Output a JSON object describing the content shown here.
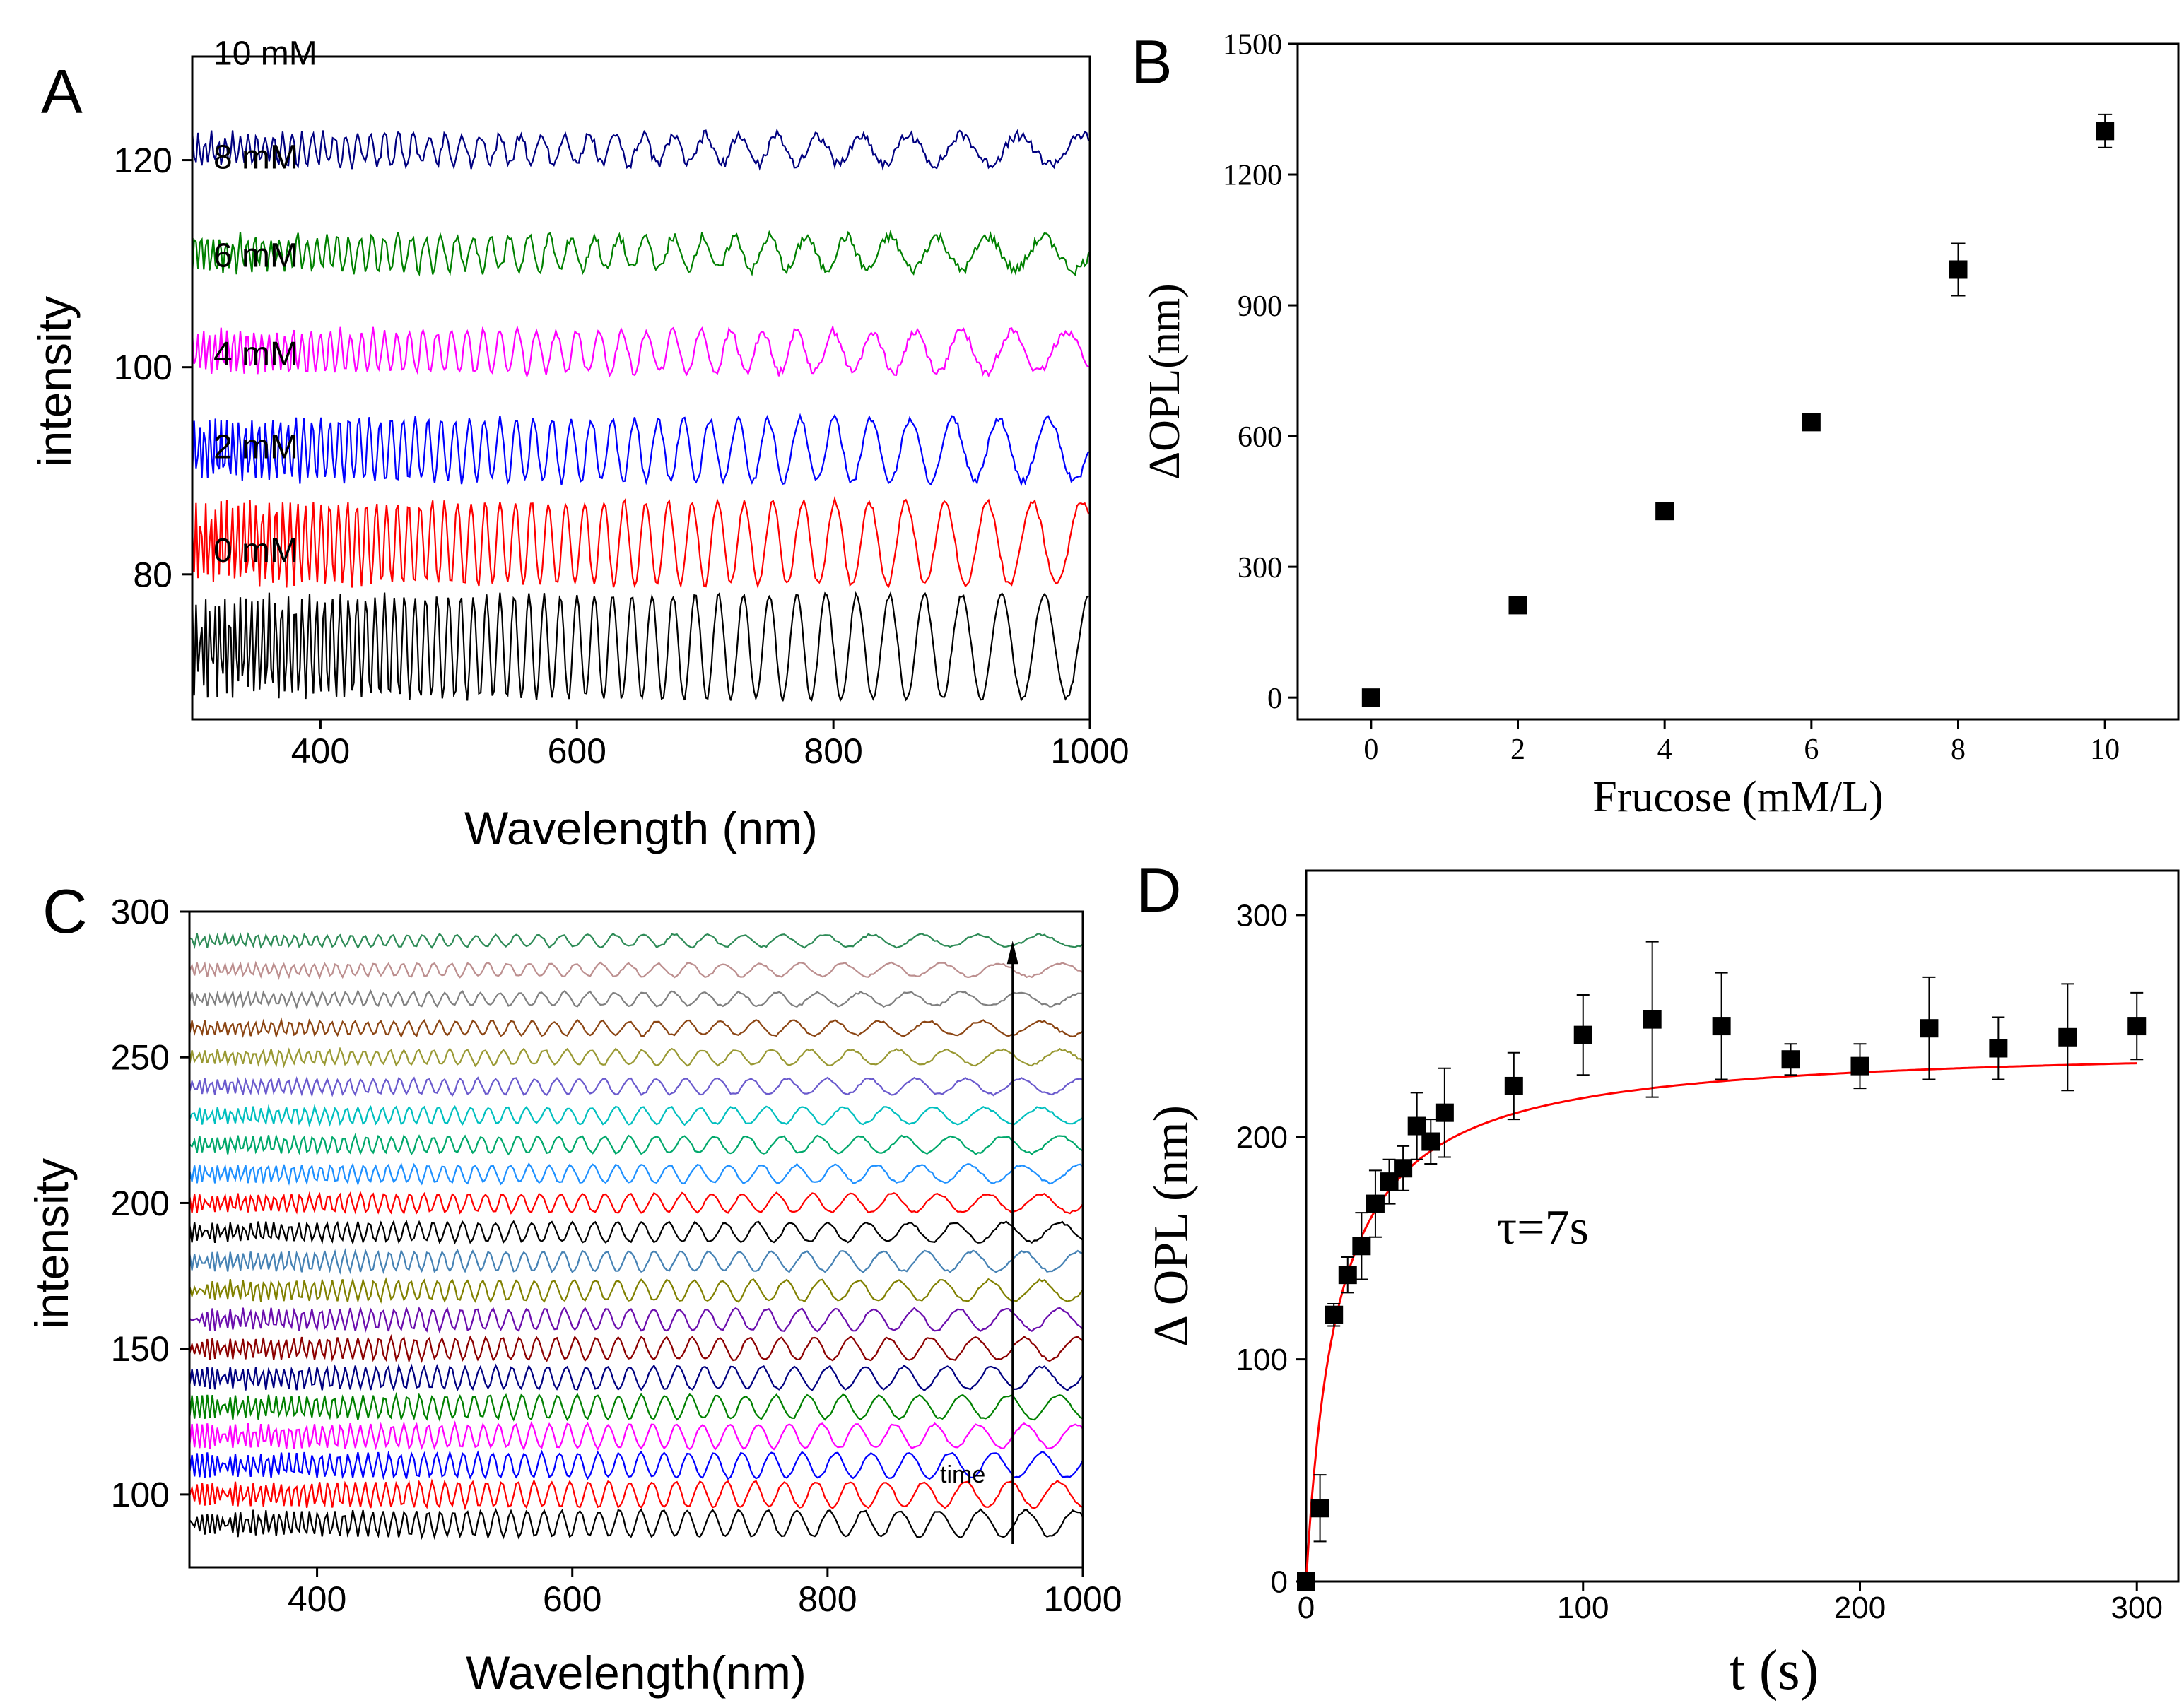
{
  "panels": {
    "A": {
      "letter": "A",
      "chart_data": {
        "type": "line",
        "xlabel": "Wavelength (nm)",
        "ylabel": "intensity",
        "xlim": [
          300,
          1000
        ],
        "ylim": [
          66,
          130
        ],
        "xticks": [
          400,
          600,
          800,
          1000
        ],
        "yticks": [
          80,
          100,
          120
        ],
        "series": [
          {
            "name": "0 mM",
            "color": "#000000",
            "offset": 73,
            "amp": 5,
            "periodScale": 1.0,
            "noise": 0.25
          },
          {
            "name": "2 mM",
            "color": "#ff0000",
            "offset": 83,
            "amp": 4,
            "periodScale": 0.92,
            "noise": 0.3
          },
          {
            "name": "4 mM",
            "color": "#0000ff",
            "offset": 92,
            "amp": 3,
            "periodScale": 0.86,
            "noise": 0.35
          },
          {
            "name": "6 mM",
            "color": "#ff00ff",
            "offset": 101.5,
            "amp": 2,
            "periodScale": 0.8,
            "noise": 0.4
          },
          {
            "name": "8 mM",
            "color": "#008000",
            "offset": 111,
            "amp": 1.6,
            "periodScale": 0.75,
            "noise": 0.5
          },
          {
            "name": "10 mM",
            "color": "#000080",
            "offset": 121,
            "amp": 1.4,
            "periodScale": 0.7,
            "noise": 0.5
          }
        ]
      }
    },
    "B": {
      "letter": "B",
      "chart_data": {
        "type": "scatter",
        "xlabel": "Frucose (mM/L)",
        "ylabel": "ΔOPL(nm)",
        "xlim": [
          -1,
          11
        ],
        "ylim": [
          -50,
          1500
        ],
        "xticks": [
          0,
          2,
          4,
          6,
          8,
          10
        ],
        "yticks": [
          0,
          300,
          600,
          900,
          1200,
          1500
        ],
        "x": [
          0,
          2,
          4,
          6,
          8,
          10
        ],
        "y": [
          0,
          212,
          428,
          632,
          982,
          1300
        ],
        "yerr": [
          5,
          10,
          18,
          10,
          60,
          38
        ]
      }
    },
    "C": {
      "letter": "C",
      "chart_data": {
        "type": "line",
        "xlabel": "Wavelength(nm)",
        "ylabel": "intensity",
        "xlim": [
          300,
          1000
        ],
        "ylim": [
          75,
          300
        ],
        "xticks": [
          400,
          600,
          800,
          1000
        ],
        "yticks": [
          100,
          150,
          200,
          250,
          300
        ],
        "annotation": "time",
        "series_colors": [
          "#000000",
          "#ff0000",
          "#0000ff",
          "#ff00ff",
          "#008000",
          "#000080",
          "#8b0000",
          "#6a0dad",
          "#808000",
          "#4682b4",
          "#000000",
          "#ff0000",
          "#1e90ff",
          "#00a86b",
          "#00bfbf",
          "#6a5acd",
          "#999933",
          "#8b4513",
          "#808080",
          "#bc8f8f",
          "#2e8b57"
        ],
        "offsets": [
          90,
          100,
          110,
          120,
          130,
          140,
          150,
          160,
          170,
          180,
          190,
          200,
          210,
          220,
          230,
          240,
          250,
          260,
          270,
          280,
          290
        ]
      }
    },
    "D": {
      "letter": "D",
      "annotation": "τ=7s",
      "chart_data": {
        "type": "scatter",
        "xlabel": "t (s)",
        "ylabel": "Δ OPL (nm)",
        "xlim": [
          0,
          315
        ],
        "ylim": [
          0,
          320
        ],
        "xticks": [
          0,
          100,
          200,
          300
        ],
        "yticks": [
          0,
          100,
          200,
          300
        ],
        "x": [
          0,
          5,
          10,
          15,
          20,
          25,
          30,
          35,
          40,
          45,
          50,
          75,
          100,
          125,
          150,
          175,
          200,
          225,
          250,
          275,
          300
        ],
        "y": [
          0,
          33,
          120,
          138,
          151,
          170,
          180,
          186,
          205,
          198,
          211,
          223,
          246,
          253,
          250,
          235,
          232,
          249,
          240,
          245,
          250
        ],
        "yerr": [
          0,
          15,
          5,
          8,
          15,
          15,
          10,
          10,
          15,
          10,
          20,
          15,
          18,
          35,
          24,
          7,
          10,
          23,
          14,
          24,
          15
        ],
        "fit": {
          "type": "exponential",
          "plateau": 242,
          "tau": 7,
          "color": "#ff0000"
        }
      }
    }
  }
}
